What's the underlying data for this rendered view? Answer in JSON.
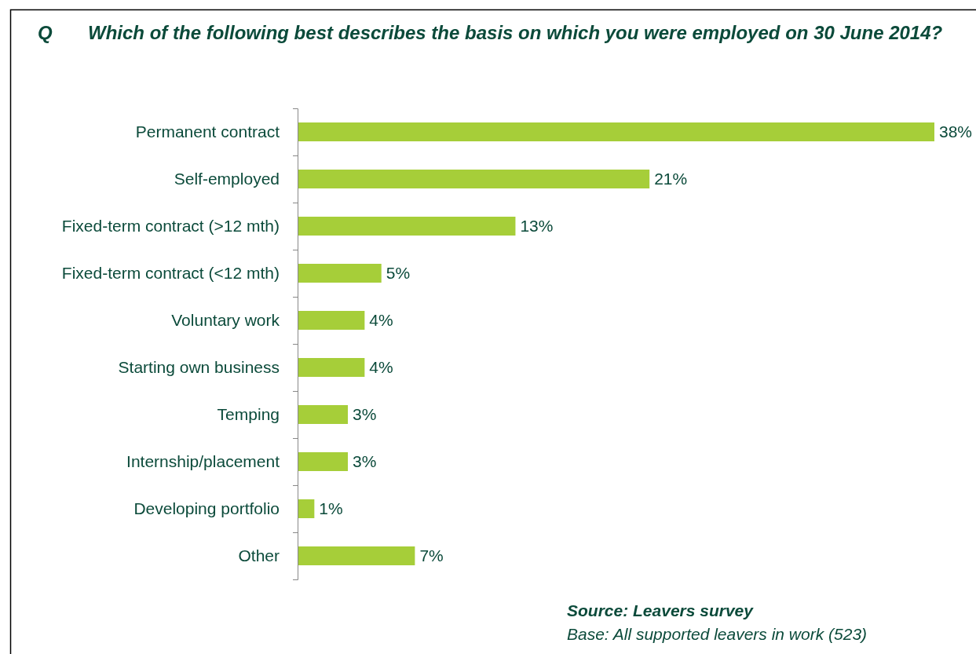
{
  "chart_data": {
    "type": "bar",
    "orientation": "horizontal",
    "title": "Which of the following best describes the basis on which you were employed on 30 June 2014?",
    "categories": [
      "Permanent contract",
      "Self-employed",
      "Fixed-term contract (>12 mth)",
      "Fixed-term contract (<12 mth)",
      "Voluntary work",
      "Starting own business",
      "Temping",
      "Internship/placement",
      "Developing portfolio",
      "Other"
    ],
    "values": [
      38,
      21,
      13,
      5,
      4,
      4,
      3,
      3,
      1,
      7
    ],
    "value_labels": [
      "38%",
      "21%",
      "13%",
      "5%",
      "4%",
      "4%",
      "3%",
      "3%",
      "1%",
      "7%"
    ],
    "color": "#a6ce39",
    "annotations": [
      "Q",
      "Source: Leavers survey",
      "Base: All supported leavers in work (523)"
    ]
  }
}
